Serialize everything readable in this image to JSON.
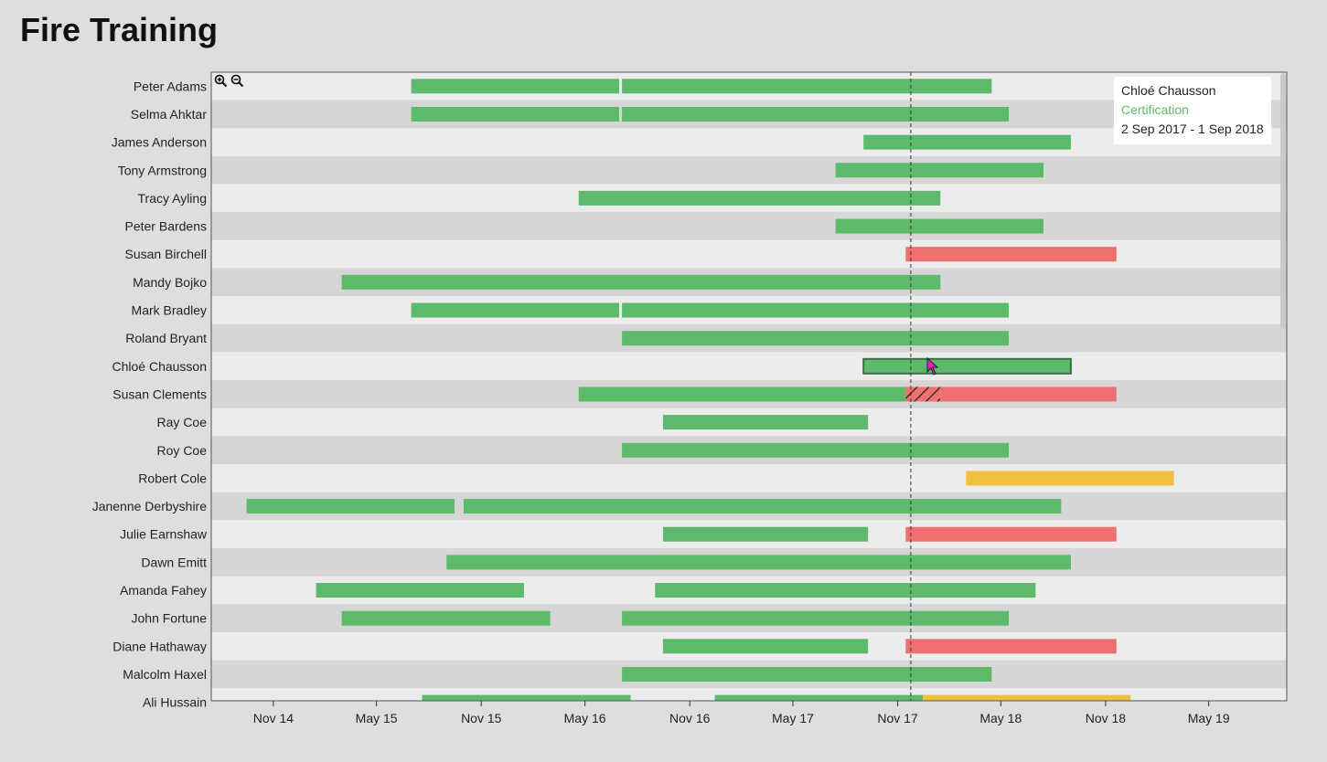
{
  "title": "Fire Training",
  "colors": {
    "current": "#5cba6a",
    "expired": "#ee7070",
    "upcoming": "#f0c040",
    "row_light": "#ececec",
    "row_dark": "#d6d6d6"
  },
  "tooltip": {
    "name": "Chloé Chausson",
    "kind": "Certification",
    "range": "2 Sep 2017 - 1 Sep 2018"
  },
  "zoom": {
    "in_icon": "zoom-in-icon",
    "out_icon": "zoom-out-icon"
  },
  "chart_data": {
    "type": "gantt",
    "x_axis": {
      "type": "date",
      "range": [
        "2014-07-15",
        "2019-09-15"
      ],
      "ticks": [
        "Nov 14",
        "May 15",
        "Nov 15",
        "May 16",
        "Nov 16",
        "May 17",
        "Nov 17",
        "May 18",
        "Nov 18",
        "May 19"
      ],
      "today": "2017-11-24"
    },
    "rows": [
      {
        "name": "Peter Adams",
        "bars": [
          {
            "start": "2015-07-01",
            "end": "2016-06-30",
            "status": "current"
          },
          {
            "start": "2016-07-05",
            "end": "2018-04-15",
            "status": "current"
          }
        ]
      },
      {
        "name": "Selma Ahktar",
        "bars": [
          {
            "start": "2015-07-01",
            "end": "2016-06-30",
            "status": "current"
          },
          {
            "start": "2016-07-05",
            "end": "2018-05-15",
            "status": "current"
          }
        ]
      },
      {
        "name": "James Anderson",
        "bars": [
          {
            "start": "2017-09-02",
            "end": "2018-09-01",
            "status": "current"
          }
        ]
      },
      {
        "name": "Tony Armstrong",
        "bars": [
          {
            "start": "2017-07-15",
            "end": "2018-07-15",
            "status": "current"
          }
        ]
      },
      {
        "name": "Tracy Ayling",
        "bars": [
          {
            "start": "2016-04-20",
            "end": "2018-01-15",
            "status": "current"
          }
        ]
      },
      {
        "name": "Peter Bardens",
        "bars": [
          {
            "start": "2017-07-15",
            "end": "2018-07-15",
            "status": "current"
          }
        ]
      },
      {
        "name": "Susan Birchell",
        "bars": [
          {
            "start": "2017-11-15",
            "end": "2018-11-20",
            "status": "expired"
          }
        ]
      },
      {
        "name": "Mandy Bojko",
        "bars": [
          {
            "start": "2015-03-01",
            "end": "2018-01-15",
            "status": "current"
          }
        ]
      },
      {
        "name": "Mark Bradley",
        "bars": [
          {
            "start": "2015-07-01",
            "end": "2016-06-30",
            "status": "current"
          },
          {
            "start": "2016-07-05",
            "end": "2018-05-15",
            "status": "current"
          }
        ]
      },
      {
        "name": "Roland Bryant",
        "bars": [
          {
            "start": "2016-07-05",
            "end": "2018-05-15",
            "status": "current"
          }
        ]
      },
      {
        "name": "Chloé Chausson",
        "bars": [
          {
            "start": "2017-09-02",
            "end": "2018-09-01",
            "status": "current",
            "highlighted": true
          }
        ]
      },
      {
        "name": "Susan Clements",
        "bars": [
          {
            "start": "2016-04-20",
            "end": "2017-11-15",
            "status": "current"
          },
          {
            "start": "2017-11-15",
            "end": "2018-01-15",
            "status": "overlap"
          },
          {
            "start": "2018-01-15",
            "end": "2018-11-20",
            "status": "expired"
          }
        ]
      },
      {
        "name": "Ray Coe",
        "bars": [
          {
            "start": "2016-09-15",
            "end": "2017-09-10",
            "status": "current"
          }
        ]
      },
      {
        "name": "Roy Coe",
        "bars": [
          {
            "start": "2016-07-05",
            "end": "2018-05-15",
            "status": "current"
          }
        ]
      },
      {
        "name": "Robert Cole",
        "bars": [
          {
            "start": "2018-03-01",
            "end": "2019-03-01",
            "status": "upcoming"
          }
        ]
      },
      {
        "name": "Janenne Derbyshire",
        "bars": [
          {
            "start": "2014-09-15",
            "end": "2015-09-15",
            "status": "current"
          },
          {
            "start": "2015-10-01",
            "end": "2018-08-15",
            "status": "current"
          }
        ]
      },
      {
        "name": "Julie Earnshaw",
        "bars": [
          {
            "start": "2016-09-15",
            "end": "2017-09-10",
            "status": "current"
          },
          {
            "start": "2017-11-15",
            "end": "2018-11-20",
            "status": "expired"
          }
        ]
      },
      {
        "name": "Dawn Emitt",
        "bars": [
          {
            "start": "2015-09-01",
            "end": "2018-09-01",
            "status": "current"
          }
        ]
      },
      {
        "name": "Amanda Fahey",
        "bars": [
          {
            "start": "2015-01-15",
            "end": "2016-01-15",
            "status": "current"
          },
          {
            "start": "2016-09-01",
            "end": "2018-07-01",
            "status": "current"
          }
        ]
      },
      {
        "name": "John Fortune",
        "bars": [
          {
            "start": "2015-03-01",
            "end": "2016-03-01",
            "status": "current"
          },
          {
            "start": "2016-07-05",
            "end": "2018-05-15",
            "status": "current"
          }
        ]
      },
      {
        "name": "Diane Hathaway",
        "bars": [
          {
            "start": "2016-09-15",
            "end": "2017-09-10",
            "status": "current"
          },
          {
            "start": "2017-11-15",
            "end": "2018-11-20",
            "status": "expired"
          }
        ]
      },
      {
        "name": "Malcolm Haxel",
        "bars": [
          {
            "start": "2016-07-05",
            "end": "2018-04-15",
            "status": "current"
          }
        ]
      },
      {
        "name": "Ali Hussain",
        "bars": [
          {
            "start": "2015-07-20",
            "end": "2016-07-20",
            "status": "current"
          },
          {
            "start": "2016-12-15",
            "end": "2017-12-15",
            "status": "current"
          },
          {
            "start": "2017-12-15",
            "end": "2018-12-15",
            "status": "upcoming"
          }
        ]
      }
    ]
  }
}
